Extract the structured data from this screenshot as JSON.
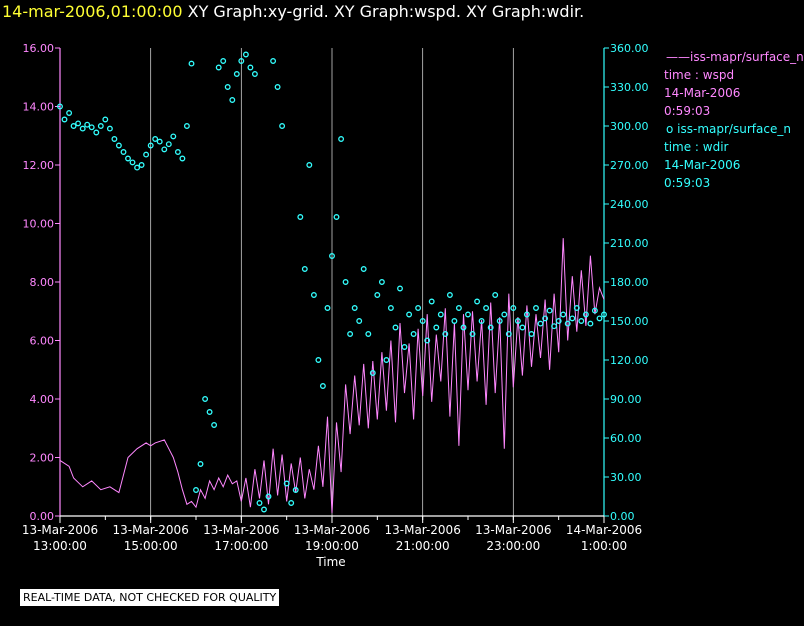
{
  "header": {
    "timestamp": "14-mar-2006,01:00:00",
    "graphs": "XY Graph:xy-grid.  XY Graph:wspd.  XY Graph:wdir."
  },
  "legend": [
    {
      "marker": "——",
      "name": "iss-mapr/surface_n",
      "field": "time : wspd",
      "date": "14-Mar-2006",
      "time": "0:59:03",
      "color": "#ff88ff"
    },
    {
      "marker": "o",
      "name": "iss-mapr/surface_n",
      "field": "time : wdir",
      "date": "14-Mar-2006",
      "time": "0:59:03",
      "color": "#33ffff"
    }
  ],
  "disclaimer": "REAL-TIME DATA, NOT CHECKED FOR QUALITY",
  "chart_data": {
    "type": "scatter",
    "xlabel": "Time",
    "x_ticks": [
      {
        "date": "13-Mar-2006",
        "time": "13:00:00",
        "hour": 13
      },
      {
        "date": "13-Mar-2006",
        "time": "15:00:00",
        "hour": 15
      },
      {
        "date": "13-Mar-2006",
        "time": "17:00:00",
        "hour": 17
      },
      {
        "date": "13-Mar-2006",
        "time": "19:00:00",
        "hour": 19
      },
      {
        "date": "13-Mar-2006",
        "time": "21:00:00",
        "hour": 21
      },
      {
        "date": "13-Mar-2006",
        "time": "23:00:00",
        "hour": 23
      },
      {
        "date": "14-Mar-2006",
        "time": "1:00:00",
        "hour": 25
      }
    ],
    "xlim_hours": [
      13,
      25
    ],
    "left_axis": {
      "ylim": [
        0,
        16
      ],
      "ticks": [
        "0.00",
        "2.00",
        "4.00",
        "6.00",
        "8.00",
        "10.00",
        "12.00",
        "14.00",
        "16.00"
      ],
      "color": "#ff88ff"
    },
    "right_axis": {
      "ylim": [
        0,
        360
      ],
      "ticks": [
        "0.00",
        "30.00",
        "60.00",
        "90.00",
        "120.00",
        "150.00",
        "180.00",
        "210.00",
        "240.00",
        "270.00",
        "300.00",
        "330.00",
        "360.00"
      ],
      "color": "#33ffff"
    },
    "grid": "vertical",
    "series": [
      {
        "field": "wspd",
        "style": "line",
        "color": "#ff88ff",
        "axis": "left",
        "points": [
          [
            13.0,
            1.9
          ],
          [
            13.2,
            1.7
          ],
          [
            13.3,
            1.3
          ],
          [
            13.5,
            1.0
          ],
          [
            13.7,
            1.2
          ],
          [
            13.9,
            0.9
          ],
          [
            14.1,
            1.0
          ],
          [
            14.3,
            0.8
          ],
          [
            14.5,
            2.0
          ],
          [
            14.7,
            2.3
          ],
          [
            14.9,
            2.5
          ],
          [
            15.0,
            2.4
          ],
          [
            15.1,
            2.5
          ],
          [
            15.3,
            2.6
          ],
          [
            15.4,
            2.3
          ],
          [
            15.5,
            2.0
          ],
          [
            15.6,
            1.5
          ],
          [
            15.7,
            0.9
          ],
          [
            15.8,
            0.4
          ],
          [
            15.9,
            0.5
          ],
          [
            16.0,
            0.3
          ],
          [
            16.1,
            0.9
          ],
          [
            16.2,
            0.6
          ],
          [
            16.3,
            1.2
          ],
          [
            16.4,
            0.9
          ],
          [
            16.5,
            1.3
          ],
          [
            16.6,
            1.0
          ],
          [
            16.7,
            1.4
          ],
          [
            16.8,
            1.1
          ],
          [
            16.9,
            1.2
          ],
          [
            17.0,
            0.5
          ],
          [
            17.1,
            1.3
          ],
          [
            17.2,
            0.3
          ],
          [
            17.3,
            1.6
          ],
          [
            17.4,
            0.6
          ],
          [
            17.5,
            1.9
          ],
          [
            17.6,
            0.4
          ],
          [
            17.7,
            2.3
          ],
          [
            17.8,
            0.7
          ],
          [
            17.9,
            2.1
          ],
          [
            18.0,
            0.5
          ],
          [
            18.1,
            1.8
          ],
          [
            18.2,
            0.8
          ],
          [
            18.3,
            2.0
          ],
          [
            18.4,
            0.6
          ],
          [
            18.5,
            1.6
          ],
          [
            18.6,
            0.9
          ],
          [
            18.7,
            2.4
          ],
          [
            18.8,
            1.0
          ],
          [
            18.9,
            3.4
          ],
          [
            19.0,
            0.1
          ],
          [
            19.1,
            3.2
          ],
          [
            19.2,
            1.5
          ],
          [
            19.3,
            4.5
          ],
          [
            19.4,
            2.8
          ],
          [
            19.5,
            4.8
          ],
          [
            19.6,
            3.1
          ],
          [
            19.7,
            5.2
          ],
          [
            19.8,
            3.0
          ],
          [
            19.9,
            5.3
          ],
          [
            20.0,
            3.3
          ],
          [
            20.1,
            5.6
          ],
          [
            20.2,
            3.6
          ],
          [
            20.3,
            6.0
          ],
          [
            20.4,
            3.2
          ],
          [
            20.5,
            6.6
          ],
          [
            20.6,
            4.2
          ],
          [
            20.7,
            5.9
          ],
          [
            20.8,
            3.3
          ],
          [
            20.9,
            6.4
          ],
          [
            21.0,
            4.1
          ],
          [
            21.1,
            6.9
          ],
          [
            21.2,
            3.9
          ],
          [
            21.3,
            6.2
          ],
          [
            21.4,
            4.6
          ],
          [
            21.5,
            7.1
          ],
          [
            21.6,
            3.4
          ],
          [
            21.7,
            6.6
          ],
          [
            21.8,
            2.4
          ],
          [
            21.9,
            6.9
          ],
          [
            22.0,
            4.3
          ],
          [
            22.1,
            7.0
          ],
          [
            22.2,
            4.6
          ],
          [
            22.3,
            6.7
          ],
          [
            22.4,
            3.8
          ],
          [
            22.5,
            7.3
          ],
          [
            22.6,
            4.2
          ],
          [
            22.7,
            6.8
          ],
          [
            22.8,
            2.3
          ],
          [
            22.9,
            7.6
          ],
          [
            23.0,
            4.4
          ],
          [
            23.1,
            6.8
          ],
          [
            23.2,
            4.8
          ],
          [
            23.3,
            7.2
          ],
          [
            23.4,
            5.1
          ],
          [
            23.5,
            6.9
          ],
          [
            23.6,
            5.4
          ],
          [
            23.7,
            7.4
          ],
          [
            23.8,
            5.0
          ],
          [
            23.9,
            7.6
          ],
          [
            24.0,
            5.6
          ],
          [
            24.1,
            9.5
          ],
          [
            24.2,
            6.0
          ],
          [
            24.3,
            8.2
          ],
          [
            24.4,
            6.3
          ],
          [
            24.5,
            8.4
          ],
          [
            24.6,
            6.5
          ],
          [
            24.7,
            8.9
          ],
          [
            24.8,
            6.9
          ],
          [
            24.9,
            7.8
          ],
          [
            25.0,
            7.4
          ]
        ]
      },
      {
        "field": "wdir",
        "style": "circles",
        "color": "#33ffff",
        "axis": "right",
        "points": [
          [
            13.0,
            315
          ],
          [
            13.1,
            305
          ],
          [
            13.2,
            310
          ],
          [
            13.3,
            300
          ],
          [
            13.4,
            302
          ],
          [
            13.5,
            298
          ],
          [
            13.6,
            301
          ],
          [
            13.7,
            299
          ],
          [
            13.8,
            295
          ],
          [
            13.9,
            300
          ],
          [
            14.0,
            305
          ],
          [
            14.1,
            298
          ],
          [
            14.2,
            290
          ],
          [
            14.3,
            285
          ],
          [
            14.4,
            280
          ],
          [
            14.5,
            275
          ],
          [
            14.6,
            272
          ],
          [
            14.7,
            268
          ],
          [
            14.8,
            270
          ],
          [
            14.9,
            278
          ],
          [
            15.0,
            285
          ],
          [
            15.1,
            290
          ],
          [
            15.2,
            288
          ],
          [
            15.3,
            282
          ],
          [
            15.4,
            286
          ],
          [
            15.5,
            292
          ],
          [
            15.6,
            280
          ],
          [
            15.7,
            275
          ],
          [
            15.8,
            300
          ],
          [
            15.9,
            348
          ],
          [
            16.0,
            20
          ],
          [
            16.1,
            40
          ],
          [
            16.2,
            90
          ],
          [
            16.3,
            80
          ],
          [
            16.4,
            70
          ],
          [
            16.5,
            345
          ],
          [
            16.6,
            350
          ],
          [
            16.7,
            330
          ],
          [
            16.8,
            320
          ],
          [
            16.9,
            340
          ],
          [
            17.0,
            350
          ],
          [
            17.1,
            355
          ],
          [
            17.2,
            345
          ],
          [
            17.3,
            340
          ],
          [
            17.4,
            10
          ],
          [
            17.5,
            5
          ],
          [
            17.6,
            15
          ],
          [
            17.7,
            350
          ],
          [
            17.8,
            330
          ],
          [
            17.9,
            300
          ],
          [
            18.0,
            25
          ],
          [
            18.1,
            10
          ],
          [
            18.2,
            20
          ],
          [
            18.3,
            230
          ],
          [
            18.4,
            190
          ],
          [
            18.5,
            270
          ],
          [
            18.6,
            170
          ],
          [
            18.7,
            120
          ],
          [
            18.8,
            100
          ],
          [
            18.9,
            160
          ],
          [
            19.0,
            200
          ],
          [
            19.1,
            230
          ],
          [
            19.2,
            290
          ],
          [
            19.3,
            180
          ],
          [
            19.4,
            140
          ],
          [
            19.5,
            160
          ],
          [
            19.6,
            150
          ],
          [
            19.7,
            190
          ],
          [
            19.8,
            140
          ],
          [
            19.9,
            110
          ],
          [
            20.0,
            170
          ],
          [
            20.1,
            180
          ],
          [
            20.2,
            120
          ],
          [
            20.3,
            160
          ],
          [
            20.4,
            145
          ],
          [
            20.5,
            175
          ],
          [
            20.6,
            130
          ],
          [
            20.7,
            155
          ],
          [
            20.8,
            140
          ],
          [
            20.9,
            160
          ],
          [
            21.0,
            150
          ],
          [
            21.1,
            135
          ],
          [
            21.2,
            165
          ],
          [
            21.3,
            145
          ],
          [
            21.4,
            155
          ],
          [
            21.5,
            140
          ],
          [
            21.6,
            170
          ],
          [
            21.7,
            150
          ],
          [
            21.8,
            160
          ],
          [
            21.9,
            145
          ],
          [
            22.0,
            155
          ],
          [
            22.1,
            140
          ],
          [
            22.2,
            165
          ],
          [
            22.3,
            150
          ],
          [
            22.4,
            160
          ],
          [
            22.5,
            145
          ],
          [
            22.6,
            170
          ],
          [
            22.7,
            150
          ],
          [
            22.8,
            155
          ],
          [
            22.9,
            140
          ],
          [
            23.0,
            160
          ],
          [
            23.1,
            150
          ],
          [
            23.2,
            145
          ],
          [
            23.3,
            155
          ],
          [
            23.4,
            140
          ],
          [
            23.5,
            160
          ],
          [
            23.6,
            148
          ],
          [
            23.7,
            152
          ],
          [
            23.8,
            158
          ],
          [
            23.9,
            146
          ],
          [
            24.0,
            150
          ],
          [
            24.1,
            155
          ],
          [
            24.2,
            148
          ],
          [
            24.3,
            152
          ],
          [
            24.4,
            160
          ],
          [
            24.5,
            150
          ],
          [
            24.6,
            155
          ],
          [
            24.7,
            148
          ],
          [
            24.8,
            158
          ],
          [
            24.9,
            152
          ],
          [
            25.0,
            155
          ]
        ]
      }
    ]
  }
}
